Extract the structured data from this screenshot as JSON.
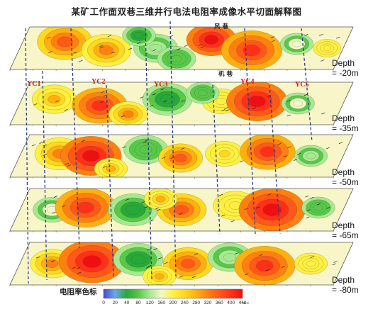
{
  "title": "某矿工作面双巷三维井行电法电阻率成像水平切面解释图",
  "roads": {
    "top": "风 巷",
    "bottom": "机 巷"
  },
  "boreholes": [
    "YC1",
    "YC2",
    "YC3",
    "YC4",
    "YC5"
  ],
  "slices": [
    {
      "depth_line1": "Depth",
      "depth_line2": "= -20m"
    },
    {
      "depth_line1": "Depth",
      "depth_line2": "= -35m"
    },
    {
      "depth_line1": "Depth",
      "depth_line2": "= -50m"
    },
    {
      "depth_line1": "Depth",
      "depth_line2": "= -65m"
    },
    {
      "depth_line1": "Depth",
      "depth_line2": "= -80m"
    }
  ],
  "legend": {
    "title": "电阻率色标",
    "unit": "Ω.m",
    "ticks": [
      "0",
      "20",
      "40",
      "80",
      "120",
      "160",
      "200",
      "240",
      "280",
      "320",
      "360",
      "400",
      "440"
    ],
    "colors": [
      "#4a48c8",
      "#6aa8e8",
      "#28a838",
      "#58c848",
      "#a8e890",
      "#f4f8c8",
      "#fff040",
      "#ffd820",
      "#ffb010",
      "#ff8010",
      "#ff5818",
      "#ff3018",
      "#ee1010"
    ]
  }
}
